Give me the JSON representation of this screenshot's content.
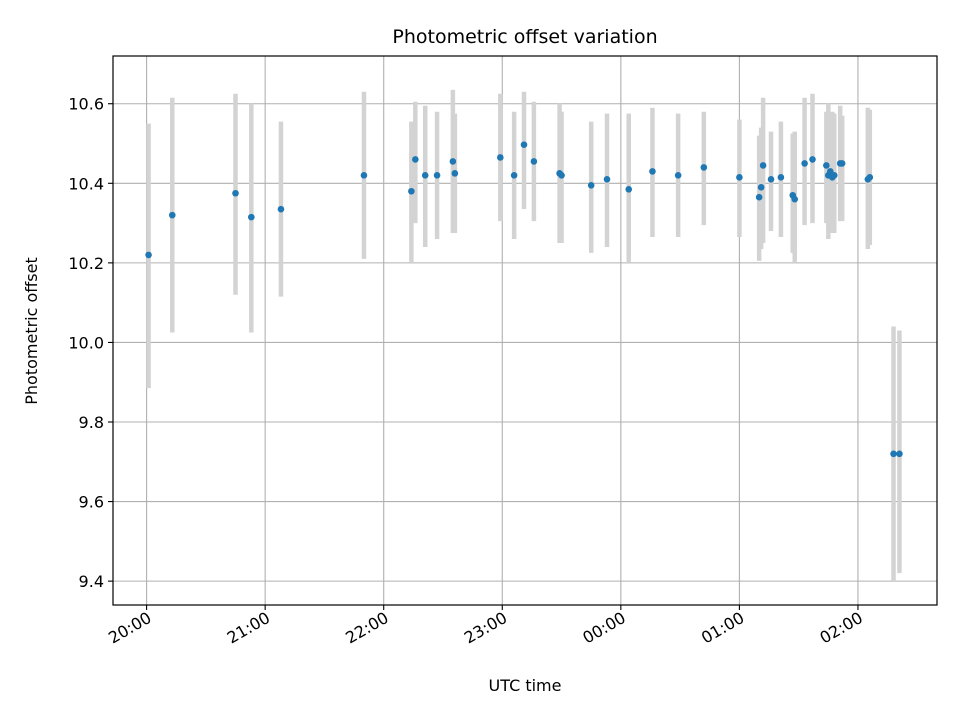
{
  "chart_data": {
    "type": "scatter",
    "title": "Photometric offset variation",
    "xlabel": "UTC time",
    "ylabel": "Photometric offset",
    "grid": true,
    "x_ticks": [
      "20:00",
      "21:00",
      "22:00",
      "23:00",
      "00:00",
      "01:00",
      "02:00"
    ],
    "y_ticks": [
      "9.4",
      "9.6",
      "9.8",
      "10.0",
      "10.2",
      "10.4",
      "10.6"
    ],
    "xlim": [
      "19:43",
      "02:40"
    ],
    "ylim": [
      9.34,
      10.72
    ],
    "colors": {
      "point": "#1f77b4",
      "errorbar": "#d3d3d3",
      "grid": "#b0b0b0"
    },
    "series": [
      {
        "x": [
          "20:01",
          "20:13",
          "20:45",
          "20:53",
          "21:08",
          "21:50",
          "22:14",
          "22:16",
          "22:21",
          "22:27",
          "22:35",
          "22:36",
          "22:59",
          "23:06",
          "23:11",
          "23:16",
          "23:29",
          "23:30",
          "23:45",
          "23:53",
          "00:04",
          "00:16",
          "00:29",
          "00:42",
          "01:00",
          "01:10",
          "01:11",
          "01:12",
          "01:16",
          "01:21",
          "01:27",
          "01:28",
          "01:33",
          "01:37",
          "01:44",
          "01:45",
          "01:46",
          "01:47",
          "01:48",
          "01:51",
          "01:52",
          "02:05",
          "02:06",
          "02:18",
          "02:21"
        ],
        "y": [
          10.22,
          10.32,
          10.375,
          10.315,
          10.335,
          10.42,
          10.38,
          10.46,
          10.42,
          10.42,
          10.455,
          10.425,
          10.465,
          10.42,
          10.497,
          10.455,
          10.425,
          10.42,
          10.395,
          10.41,
          10.385,
          10.43,
          10.42,
          10.44,
          10.415,
          10.365,
          10.39,
          10.445,
          10.41,
          10.415,
          10.37,
          10.36,
          10.45,
          10.46,
          10.445,
          10.42,
          10.43,
          10.415,
          10.42,
          10.45,
          10.45,
          10.41,
          10.415,
          9.72,
          9.72
        ],
        "err_low": [
          9.885,
          10.025,
          10.12,
          10.025,
          10.115,
          10.21,
          10.2,
          10.3,
          10.24,
          10.26,
          10.275,
          10.275,
          10.305,
          10.26,
          10.335,
          10.305,
          10.25,
          10.25,
          10.225,
          10.24,
          10.2,
          10.265,
          10.265,
          10.295,
          10.265,
          10.205,
          10.235,
          10.25,
          10.28,
          10.265,
          10.225,
          10.2,
          10.295,
          10.3,
          10.3,
          10.26,
          10.28,
          10.275,
          10.275,
          10.305,
          10.305,
          10.235,
          10.245,
          9.4,
          9.42
        ],
        "err_high": [
          10.55,
          10.615,
          10.625,
          10.6,
          10.555,
          10.63,
          10.555,
          10.605,
          10.595,
          10.58,
          10.635,
          10.575,
          10.625,
          10.58,
          10.63,
          10.605,
          10.6,
          10.58,
          10.555,
          10.575,
          10.575,
          10.59,
          10.575,
          10.58,
          10.56,
          10.52,
          10.54,
          10.615,
          10.53,
          10.555,
          10.525,
          10.53,
          10.615,
          10.625,
          10.58,
          10.6,
          10.575,
          10.58,
          10.575,
          10.595,
          10.57,
          10.59,
          10.585,
          10.04,
          10.03
        ]
      }
    ]
  }
}
